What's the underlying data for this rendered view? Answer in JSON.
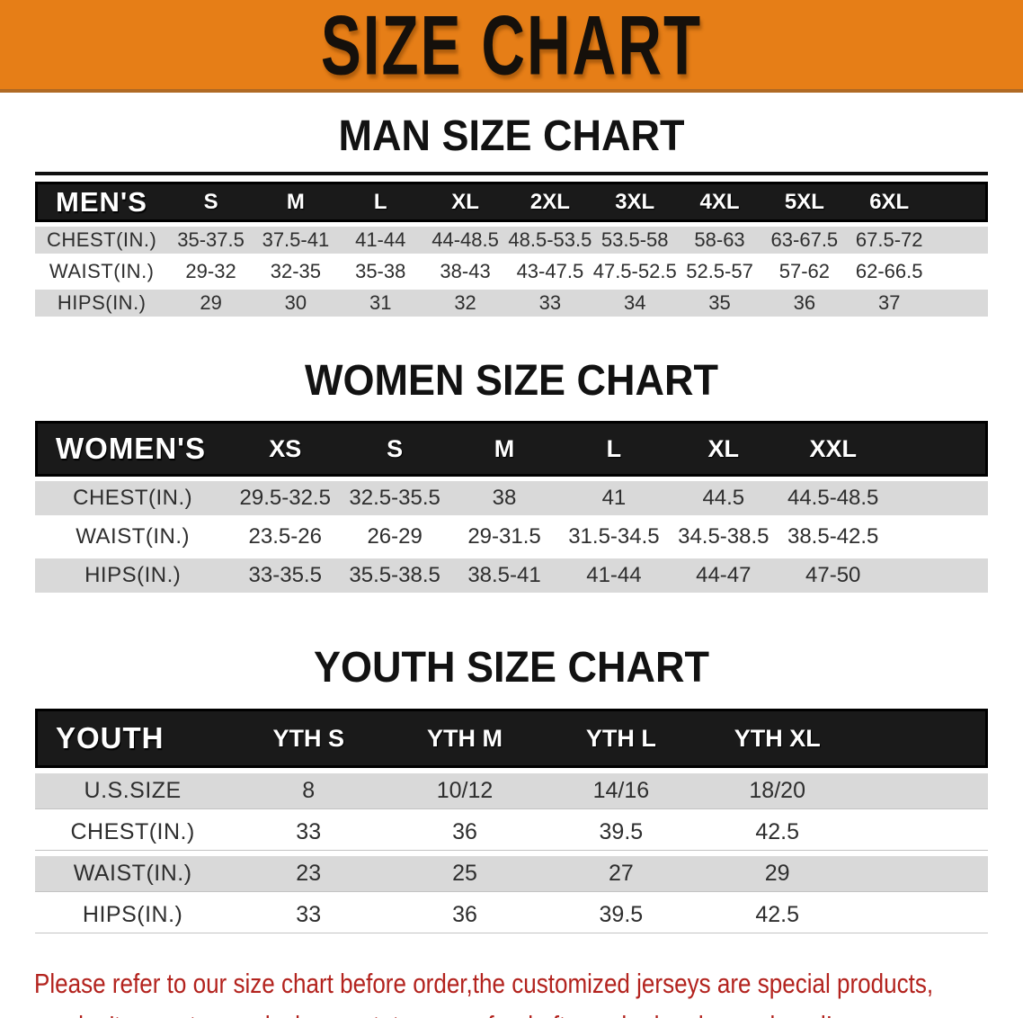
{
  "banner": {
    "title": "SIZE CHART"
  },
  "colors": {
    "banner_orange": "#e67e17",
    "header_black": "#1a1a1a",
    "stripe_gray": "#d9d9d9",
    "note_red": "#b3231e"
  },
  "tables": {
    "men": {
      "title": "MAN SIZE CHART",
      "header_label": "MEN'S",
      "sizes": [
        "S",
        "M",
        "L",
        "XL",
        "2XL",
        "3XL",
        "4XL",
        "5XL",
        "6XL"
      ],
      "rows": [
        {
          "label": "CHEST(IN.)",
          "values": [
            "35-37.5",
            "37.5-41",
            "41-44",
            "44-48.5",
            "48.5-53.5",
            "53.5-58",
            "58-63",
            "63-67.5",
            "67.5-72"
          ]
        },
        {
          "label": "WAIST(IN.)",
          "values": [
            "29-32",
            "32-35",
            "35-38",
            "38-43",
            "43-47.5",
            "47.5-52.5",
            "52.5-57",
            "57-62",
            "62-66.5"
          ]
        },
        {
          "label": "HIPS(IN.)",
          "values": [
            "29",
            "30",
            "31",
            "32",
            "33",
            "34",
            "35",
            "36",
            "37"
          ]
        }
      ]
    },
    "women": {
      "title": "WOMEN SIZE CHART",
      "header_label": "WOMEN'S",
      "sizes": [
        "XS",
        "S",
        "M",
        "L",
        "XL",
        "XXL"
      ],
      "rows": [
        {
          "label": "CHEST(IN.)",
          "values": [
            "29.5-32.5",
            "32.5-35.5",
            "38",
            "41",
            "44.5",
            "44.5-48.5"
          ]
        },
        {
          "label": "WAIST(IN.)",
          "values": [
            "23.5-26",
            "26-29",
            "29-31.5",
            "31.5-34.5",
            "34.5-38.5",
            "38.5-42.5"
          ]
        },
        {
          "label": "HIPS(IN.)",
          "values": [
            "33-35.5",
            "35.5-38.5",
            "38.5-41",
            "41-44",
            "44-47",
            "47-50"
          ]
        }
      ]
    },
    "youth": {
      "title": "YOUTH SIZE CHART",
      "header_label": "YOUTH",
      "sizes": [
        "YTH S",
        "YTH M",
        "YTH L",
        "YTH XL"
      ],
      "rows": [
        {
          "label": "U.S.SIZE",
          "values": [
            "8",
            "10/12",
            "14/16",
            "18/20"
          ]
        },
        {
          "label": "CHEST(IN.)",
          "values": [
            "33",
            "36",
            "39.5",
            "42.5"
          ]
        },
        {
          "label": "WAIST(IN.)",
          "values": [
            "23",
            "25",
            "27",
            "29"
          ]
        },
        {
          "label": "HIPS(IN.)",
          "values": [
            "33",
            "36",
            "39.5",
            "42.5"
          ]
        }
      ]
    }
  },
  "note": {
    "line1": "Please refer to our size chart before order,the customized jerseys are special products,",
    "line2": "we don't accept cancel, change, teturn or refund after order has been placed!"
  }
}
